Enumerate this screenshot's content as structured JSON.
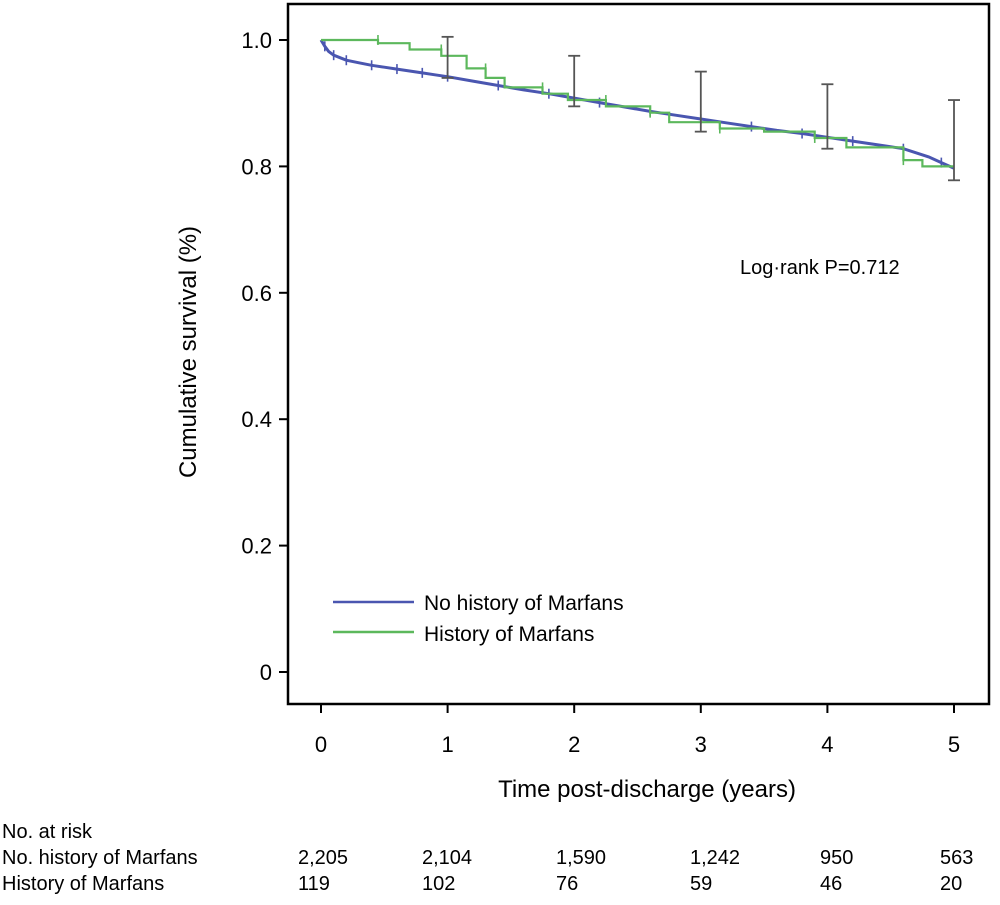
{
  "chart_data": {
    "type": "line",
    "subtype": "kaplan-meier survival curve",
    "xlabel": "Time post-discharge (years)",
    "ylabel": "Cumulative survival (%)",
    "xlim": [
      0,
      5
    ],
    "ylim": [
      0,
      1.05
    ],
    "x_ticks": [
      0,
      1,
      2,
      3,
      4,
      5
    ],
    "y_ticks": [
      0,
      0.2,
      0.4,
      0.6,
      0.8,
      1.0
    ],
    "x_tick_labels": [
      "0",
      "1",
      "2",
      "3",
      "4",
      "5"
    ],
    "y_tick_labels": [
      "0",
      "0.2",
      "0.4",
      "0.6",
      "0.8",
      "1.0"
    ],
    "grid": false,
    "legend_position": "bottom-left",
    "annotation": "Log·rank P=0.712",
    "series": [
      {
        "name": "No history of Marfans",
        "color": "#4a56b0",
        "x": [
          0,
          0.03,
          0.06,
          0.1,
          0.15,
          0.2,
          0.3,
          0.4,
          0.5,
          0.6,
          0.7,
          0.8,
          0.9,
          1.0,
          1.2,
          1.4,
          1.6,
          1.8,
          2.0,
          2.2,
          2.4,
          2.6,
          2.8,
          3.0,
          3.2,
          3.4,
          3.6,
          3.8,
          4.0,
          4.2,
          4.4,
          4.6,
          4.8,
          4.9,
          5.0
        ],
        "y": [
          1.0,
          0.99,
          0.982,
          0.976,
          0.972,
          0.968,
          0.964,
          0.96,
          0.957,
          0.954,
          0.951,
          0.948,
          0.945,
          0.942,
          0.935,
          0.928,
          0.921,
          0.915,
          0.908,
          0.901,
          0.894,
          0.887,
          0.881,
          0.875,
          0.869,
          0.863,
          0.857,
          0.852,
          0.846,
          0.84,
          0.834,
          0.828,
          0.815,
          0.806,
          0.797
        ]
      },
      {
        "name": "History of Marfans",
        "color": "#5cb85c",
        "x": [
          0,
          0.45,
          0.45,
          0.7,
          0.7,
          0.95,
          0.95,
          1.15,
          1.15,
          1.3,
          1.3,
          1.45,
          1.45,
          1.75,
          1.75,
          1.95,
          1.95,
          2.25,
          2.25,
          2.6,
          2.6,
          2.6,
          2.75,
          2.75,
          3.15,
          3.15,
          3.5,
          3.5,
          3.9,
          3.9,
          4.15,
          4.15,
          4.6,
          4.6,
          4.75,
          4.75,
          5.0
        ],
        "y": [
          1.0,
          1.0,
          0.995,
          0.995,
          0.985,
          0.985,
          0.975,
          0.975,
          0.955,
          0.955,
          0.94,
          0.94,
          0.925,
          0.925,
          0.915,
          0.915,
          0.905,
          0.905,
          0.895,
          0.895,
          0.885,
          0.885,
          0.885,
          0.87,
          0.87,
          0.86,
          0.86,
          0.855,
          0.855,
          0.845,
          0.845,
          0.83,
          0.83,
          0.81,
          0.81,
          0.8,
          0.8
        ]
      }
    ],
    "error_bars": [
      {
        "x": 1,
        "low": 0.94,
        "high": 1.005
      },
      {
        "x": 2,
        "low": 0.895,
        "high": 0.975
      },
      {
        "x": 3,
        "low": 0.855,
        "high": 0.95
      },
      {
        "x": 4,
        "low": 0.828,
        "high": 0.93
      },
      {
        "x": 5,
        "low": 0.778,
        "high": 0.905
      }
    ],
    "risk_table": {
      "title": "No. at risk",
      "rows": [
        {
          "label": "No. history of Marfans",
          "values": [
            "2,205",
            "2,104",
            "1,590",
            "1,242",
            "950",
            "563"
          ]
        },
        {
          "label": "History of Marfans",
          "values": [
            "119",
            "102",
            "76",
            "59",
            "46",
            "20"
          ]
        }
      ]
    }
  }
}
